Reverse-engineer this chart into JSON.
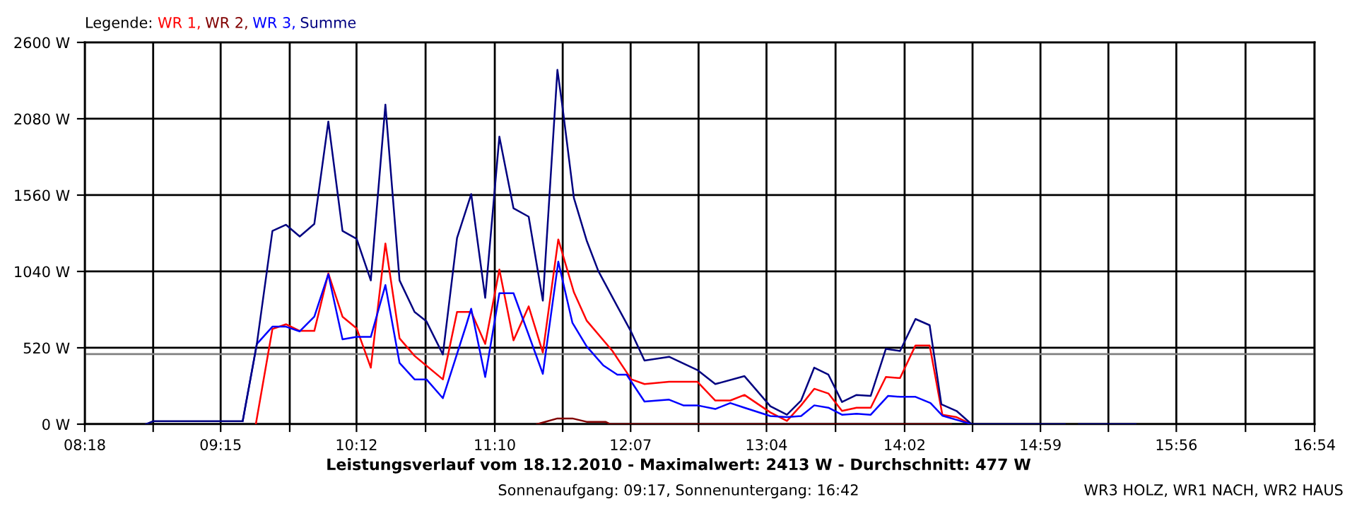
{
  "chart_data": {
    "type": "line",
    "title": "Leistungsverlauf vom 18.12.2010 - Maximalwert: 2413 W - Durchschnitt: 477 W",
    "subtitle": "Sonnenaufgang: 09:17, Sonnenuntergang: 16:42",
    "annotations": [
      "WR3 HOLZ, WR1 NACH, WR2 HAUS"
    ],
    "legend_title": "Legende:",
    "legend": "top left",
    "grid": true,
    "marker": "none",
    "line_style": "solid",
    "xlim": [
      8.3,
      16.9
    ],
    "ylim": [
      0,
      2600
    ],
    "xticks": [
      {
        "value": 8.3,
        "label": "08:18"
      },
      {
        "value": 8.778,
        "label": null
      },
      {
        "value": 9.25,
        "label": "09:15"
      },
      {
        "value": 9.733,
        "label": null
      },
      {
        "value": 10.2,
        "label": "10:12"
      },
      {
        "value": 10.683,
        "label": null
      },
      {
        "value": 11.167,
        "label": "11:10"
      },
      {
        "value": 11.642,
        "label": null
      },
      {
        "value": 12.117,
        "label": "12:07"
      },
      {
        "value": 12.592,
        "label": null
      },
      {
        "value": 13.067,
        "label": "13:04"
      },
      {
        "value": 13.55,
        "label": null
      },
      {
        "value": 14.033,
        "label": "14:02"
      },
      {
        "value": 14.508,
        "label": null
      },
      {
        "value": 14.983,
        "label": "14:59"
      },
      {
        "value": 15.458,
        "label": null
      },
      {
        "value": 15.933,
        "label": "15:56"
      },
      {
        "value": 16.417,
        "label": null
      },
      {
        "value": 16.9,
        "label": "16:54"
      }
    ],
    "yticks": [
      {
        "value": 0,
        "label": "0 W"
      },
      {
        "value": 520,
        "label": "520 W"
      },
      {
        "value": 1040,
        "label": "1040 W"
      },
      {
        "value": 1560,
        "label": "1560 W"
      },
      {
        "value": 2080,
        "label": "2080 W"
      },
      {
        "value": 2600,
        "label": "2600 W"
      }
    ],
    "ref_lines": [
      {
        "axis": "y",
        "value": 477,
        "color": "#808080"
      }
    ],
    "series": [
      {
        "name": "WR 1,",
        "color": "#ff0000",
        "x": [
          9.496,
          9.612,
          9.707,
          9.803,
          9.905,
          10.003,
          10.102,
          10.201,
          10.3,
          10.402,
          10.501,
          10.606,
          10.804,
          10.903,
          11.002,
          11.1,
          11.199,
          11.298,
          11.404,
          11.503,
          11.611,
          11.72,
          11.809,
          11.99,
          12.122,
          12.214,
          12.386,
          12.583,
          12.709,
          12.814,
          12.913,
          13.094,
          13.21,
          13.309,
          13.401,
          13.5,
          13.595,
          13.697,
          13.796,
          13.902,
          14.001,
          14.109,
          14.208,
          14.297,
          14.396,
          14.501
        ],
        "values": [
          0,
          648,
          680,
          635,
          635,
          1027,
          732,
          652,
          385,
          1230,
          584,
          465,
          305,
          764,
          764,
          546,
          1053,
          571,
          802,
          488,
          1258,
          899,
          706,
          498,
          305,
          273,
          289,
          289,
          161,
          161,
          199,
          80,
          22,
          128,
          241,
          209,
          90,
          112,
          112,
          321,
          314,
          536,
          536,
          64,
          48,
          0
        ]
      },
      {
        "name": "WR 2,",
        "color": "#800000",
        "x": [
          11.463,
          11.605,
          11.71,
          11.809,
          11.941,
          11.974,
          14.357
        ],
        "values": [
          0,
          39,
          39,
          16,
          16,
          0,
          0
        ]
      },
      {
        "name": "WR 3,",
        "color": "#0000ff",
        "x": [
          9.404,
          9.503,
          9.612,
          9.707,
          9.803,
          9.905,
          10.003,
          10.102,
          10.201,
          10.3,
          10.402,
          10.501,
          10.606,
          10.689,
          10.804,
          10.969,
          11.002,
          11.1,
          11.199,
          11.298,
          11.503,
          11.611,
          11.71,
          11.809,
          11.925,
          12.024,
          12.089,
          12.214,
          12.386,
          12.485,
          12.583,
          12.709,
          12.814,
          12.913,
          13.094,
          13.21,
          13.309,
          13.401,
          13.5,
          13.595,
          13.697,
          13.796,
          13.918,
          14.001,
          14.109,
          14.214,
          14.297,
          14.501
        ],
        "values": [
          20,
          546,
          664,
          664,
          632,
          732,
          1021,
          578,
          594,
          594,
          947,
          417,
          305,
          305,
          177,
          680,
          786,
          321,
          892,
          892,
          343,
          1107,
          690,
          530,
          401,
          337,
          337,
          154,
          167,
          128,
          128,
          103,
          144,
          112,
          55,
          48,
          55,
          128,
          112,
          64,
          71,
          64,
          193,
          186,
          186,
          144,
          58,
          0
        ]
      },
      {
        "name": "Summe",
        "color": "#000080",
        "x": [
          8.728,
          8.777,
          9.404,
          9.503,
          9.612,
          9.707,
          9.803,
          9.905,
          10.003,
          10.102,
          10.201,
          10.3,
          10.402,
          10.501,
          10.606,
          10.689,
          10.804,
          10.903,
          11.002,
          11.1,
          11.199,
          11.298,
          11.404,
          11.503,
          11.605,
          11.644,
          11.72,
          11.809,
          11.891,
          12.024,
          12.122,
          12.214,
          12.386,
          12.583,
          12.709,
          12.913,
          13.094,
          13.21,
          13.309,
          13.401,
          13.5,
          13.595,
          13.697,
          13.796,
          13.902,
          14.001,
          14.109,
          14.208,
          14.29,
          14.396,
          14.501,
          15.153,
          15.2,
          15.252,
          15.648
        ],
        "values": [
          0,
          20,
          20,
          546,
          1316,
          1358,
          1278,
          1364,
          2061,
          1316,
          1262,
          979,
          2176,
          979,
          764,
          700,
          475,
          1268,
          1567,
          860,
          1958,
          1470,
          1413,
          841,
          2413,
          2135,
          1541,
          1252,
          1043,
          802,
          626,
          433,
          459,
          369,
          273,
          327,
          122,
          64,
          161,
          385,
          337,
          151,
          199,
          193,
          513,
          498,
          716,
          674,
          135,
          90,
          0,
          0,
          null,
          0,
          0
        ]
      }
    ]
  }
}
